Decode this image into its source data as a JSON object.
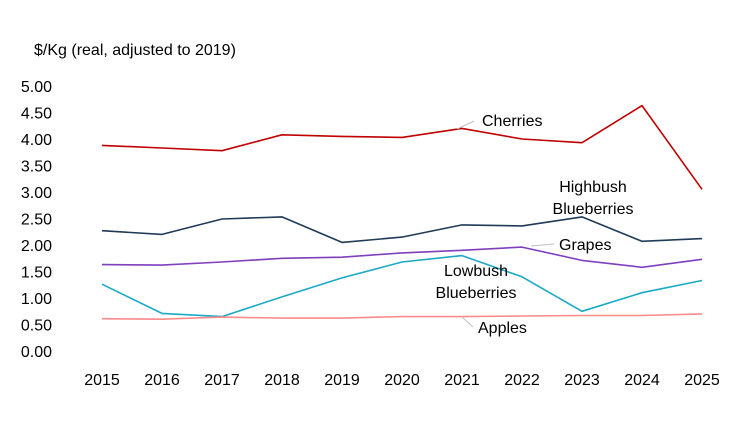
{
  "chart_data": {
    "type": "line",
    "ylabel": "$/Kg (real, adjusted to 2019)",
    "ylim": [
      0,
      5
    ],
    "yticks": [
      "0.00",
      "0.50",
      "1.00",
      "1.50",
      "2.00",
      "2.50",
      "3.00",
      "3.50",
      "4.00",
      "4.50",
      "5.00"
    ],
    "categories": [
      "2015",
      "2016",
      "2017",
      "2018",
      "2019",
      "2020",
      "2021",
      "2022",
      "2023",
      "2024",
      "2025"
    ],
    "grid": false,
    "legend": "none",
    "series": [
      {
        "name": "Cherries",
        "color": "#c00000",
        "values": [
          3.88,
          3.83,
          3.78,
          4.08,
          4.05,
          4.03,
          4.2,
          4.0,
          3.93,
          4.63,
          3.05
        ]
      },
      {
        "name": "Highbush Blueberries",
        "label_lines": [
          "Highbush",
          "Blueberries"
        ],
        "color": "#1f3b57",
        "values": [
          2.27,
          2.2,
          2.49,
          2.53,
          2.05,
          2.15,
          2.38,
          2.36,
          2.53,
          2.07,
          2.12
        ]
      },
      {
        "name": "Grapes",
        "color": "#7f3fbf",
        "values": [
          1.63,
          1.62,
          1.68,
          1.75,
          1.77,
          1.85,
          1.9,
          1.96,
          1.71,
          1.58,
          1.73
        ]
      },
      {
        "name": "Lowbush Blueberries",
        "label_lines": [
          "Lowbush",
          "Blueberries"
        ],
        "color": "#1aa9c6",
        "values": [
          1.26,
          0.71,
          0.65,
          1.02,
          1.38,
          1.68,
          1.8,
          1.4,
          0.75,
          1.1,
          1.33
        ]
      },
      {
        "name": "Apples",
        "color": "#ff8a8a",
        "values": [
          0.61,
          0.6,
          0.64,
          0.62,
          0.62,
          0.65,
          0.65,
          0.66,
          0.67,
          0.67,
          0.7
        ]
      }
    ]
  }
}
